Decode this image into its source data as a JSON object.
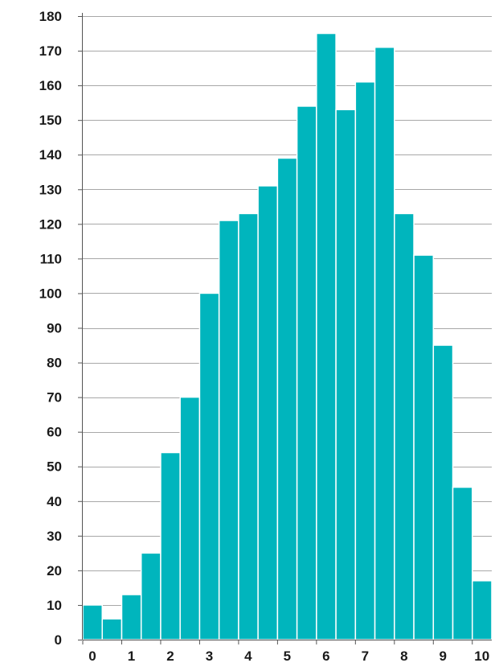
{
  "chart_data": {
    "type": "bar",
    "bin_edges": [
      0,
      0.5,
      1,
      1.5,
      2,
      2.5,
      3,
      3.5,
      4,
      4.5,
      5,
      5.5,
      6,
      6.5,
      7,
      7.5,
      8,
      8.5,
      9,
      9.5,
      10
    ],
    "values": [
      10,
      6,
      13,
      25,
      54,
      70,
      100,
      121,
      123,
      131,
      139,
      154,
      175,
      153,
      161,
      171,
      123,
      111,
      85,
      44,
      17
    ],
    "xticks": [
      "0",
      "1",
      "2",
      "3",
      "4",
      "5",
      "6",
      "7",
      "8",
      "9",
      "10"
    ],
    "yticks": [
      "0",
      "10",
      "20",
      "30",
      "40",
      "50",
      "60",
      "70",
      "80",
      "90",
      "100",
      "110",
      "120",
      "130",
      "140",
      "150",
      "160",
      "170",
      "180"
    ],
    "xlim": [
      0,
      10.5
    ],
    "ylim": [
      0,
      180
    ],
    "grid": "horizontal",
    "title": "",
    "xlabel": "",
    "ylabel": "",
    "colors": {
      "bar": "#00b5bd",
      "bar_edge": "#ffffff",
      "grid": "#a8a8a8",
      "axis": "#555555"
    }
  }
}
